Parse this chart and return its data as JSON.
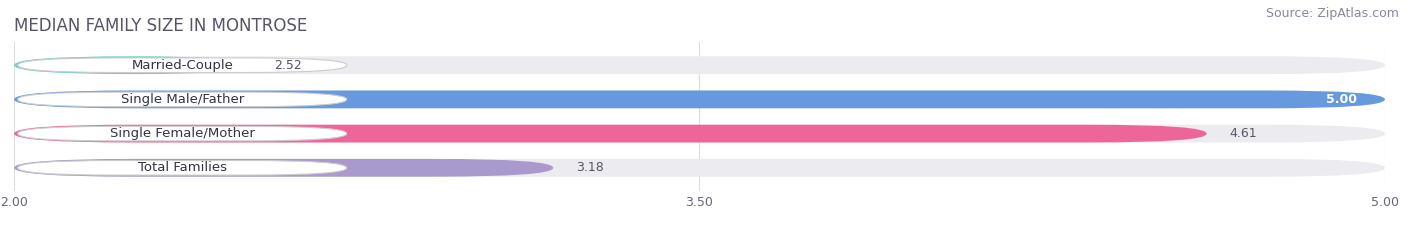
{
  "title": "MEDIAN FAMILY SIZE IN MONTROSE",
  "source": "Source: ZipAtlas.com",
  "categories": [
    "Married-Couple",
    "Single Male/Father",
    "Single Female/Mother",
    "Total Families"
  ],
  "values": [
    2.52,
    5.0,
    4.61,
    3.18
  ],
  "bar_colors": [
    "#6ecece",
    "#6699dd",
    "#ee6699",
    "#aa99cc"
  ],
  "xmin": 2.0,
  "xmax": 5.0,
  "xticks": [
    2.0,
    3.5,
    5.0
  ],
  "xtick_labels": [
    "2.00",
    "3.50",
    "5.00"
  ],
  "background_color": "#ffffff",
  "bar_background_color": "#ebebf0",
  "title_color": "#555566",
  "source_color": "#888899",
  "title_fontsize": 12,
  "source_fontsize": 9,
  "label_fontsize": 9.5,
  "value_fontsize": 9
}
